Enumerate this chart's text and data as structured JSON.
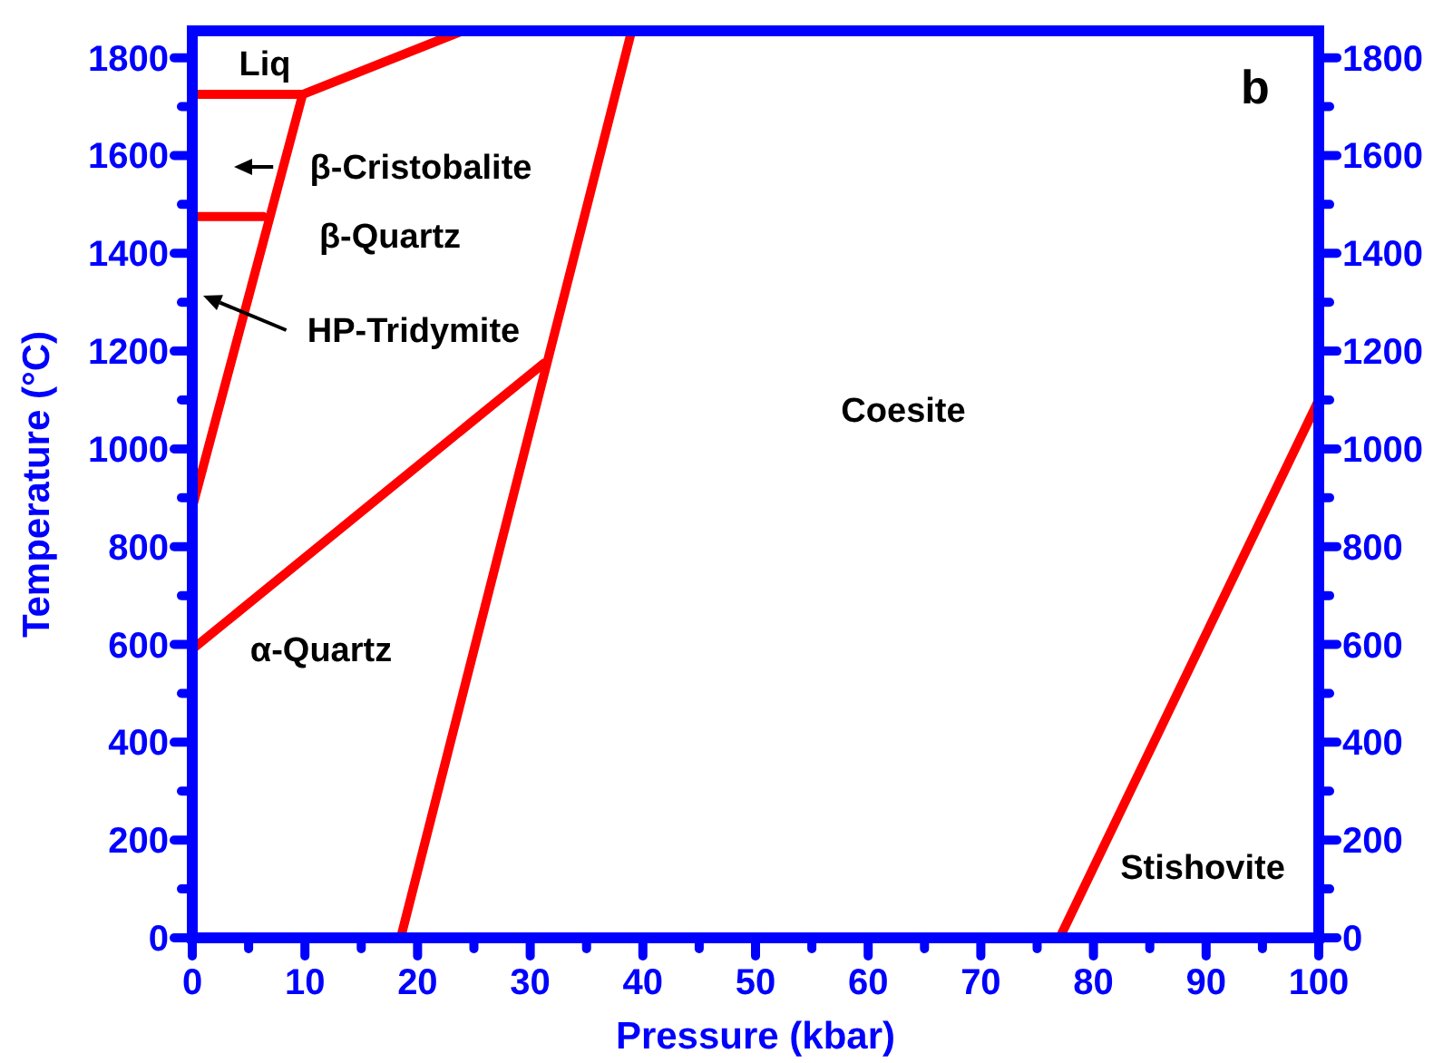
{
  "chart_data": {
    "type": "line",
    "xlabel": "Pressure (kbar)",
    "ylabel": "Temperature (°C)",
    "xlim": [
      0,
      100
    ],
    "ylim": [
      0,
      1855
    ],
    "xticks": [
      0,
      {
        "value": 5,
        "label": null
      },
      10,
      {
        "value": 15,
        "label": null
      },
      20,
      {
        "value": 25,
        "label": null
      },
      30,
      {
        "value": 35,
        "label": null
      },
      40,
      {
        "value": 45,
        "label": null
      },
      50,
      {
        "value": 55,
        "label": null
      },
      60,
      {
        "value": 65,
        "label": null
      },
      70,
      {
        "value": 75,
        "label": null
      },
      80,
      {
        "value": 85,
        "label": null
      },
      90,
      {
        "value": 95,
        "label": null
      },
      100
    ],
    "yticks": [
      0,
      {
        "value": 100,
        "label": null
      },
      200,
      {
        "value": 300,
        "label": null
      },
      400,
      {
        "value": 500,
        "label": null
      },
      600,
      {
        "value": 700,
        "label": null
      },
      800,
      {
        "value": 900,
        "label": null
      },
      1000,
      {
        "value": 1100,
        "label": null
      },
      1200,
      {
        "value": 1300,
        "label": null
      },
      1400,
      {
        "value": 1500,
        "label": null
      },
      1600,
      {
        "value": 1700,
        "label": null
      },
      1800
    ],
    "y2lim": [
      0,
      1855
    ],
    "y2ticks": [
      0,
      {
        "value": 100,
        "label": null
      },
      200,
      {
        "value": 300,
        "label": null
      },
      400,
      {
        "value": 500,
        "label": null
      },
      600,
      {
        "value": 700,
        "label": null
      },
      800,
      {
        "value": 900,
        "label": null
      },
      1000,
      {
        "value": 1100,
        "label": null
      },
      1200,
      {
        "value": 1300,
        "label": null
      },
      1400,
      {
        "value": 1500,
        "label": null
      },
      1600,
      {
        "value": 1700,
        "label": null
      },
      1800
    ],
    "grid": false,
    "marker": "none",
    "line_style": "solid",
    "series": [
      {
        "color": "#ff0000",
        "x": [
          0,
          9.8,
          24
        ],
        "values": [
          1725,
          1725,
          1855
        ]
      },
      {
        "color": "#ff0000",
        "x": [
          0,
          6.3
        ],
        "values": [
          1475,
          1475
        ]
      },
      {
        "color": "#ff0000",
        "x": [
          0,
          9.8
        ],
        "values": [
          880,
          1725
        ]
      },
      {
        "color": "#ff0000",
        "x": [
          0,
          31.2
        ],
        "values": [
          590,
          1175
        ]
      },
      {
        "color": "#ff0000",
        "x": [
          18.5,
          39
        ],
        "values": [
          0,
          1855
        ]
      },
      {
        "color": "#ff0000",
        "x": [
          77,
          100
        ],
        "values": [
          0,
          1100
        ]
      }
    ],
    "annotations": [
      "Liq",
      "β-Cristobalite",
      "β-Quartz",
      "HP-Tridymite",
      "Coesite",
      "α-Quartz",
      "Stishovite",
      "b"
    ]
  }
}
